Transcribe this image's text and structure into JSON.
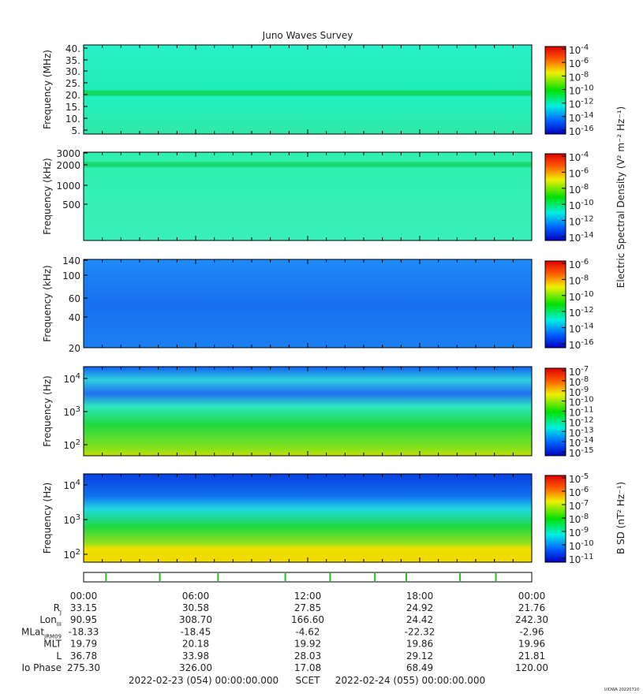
{
  "title": "Juno Waves Survey",
  "panels": [
    {
      "ylabel": "Frequency (MHz)",
      "yticks": [
        "40.",
        "35.",
        "30.",
        "25.",
        "20.",
        "15.",
        "10.",
        "5."
      ],
      "cbar_ticks": [
        {
          "base": "10",
          "exp": "-4"
        },
        {
          "base": "10",
          "exp": "-6"
        },
        {
          "base": "10",
          "exp": "-8"
        },
        {
          "base": "10",
          "exp": "-10"
        },
        {
          "base": "10",
          "exp": "-12"
        },
        {
          "base": "10",
          "exp": "-14"
        },
        {
          "base": "10",
          "exp": "-16"
        }
      ]
    },
    {
      "ylabel": "Frequency (kHz)",
      "yticks": [
        "3000",
        "2000",
        "1000",
        "500"
      ],
      "cbar_ticks": [
        {
          "base": "10",
          "exp": "-4"
        },
        {
          "base": "10",
          "exp": "-6"
        },
        {
          "base": "10",
          "exp": "-8"
        },
        {
          "base": "10",
          "exp": "-10"
        },
        {
          "base": "10",
          "exp": "-12"
        },
        {
          "base": "10",
          "exp": "-14"
        }
      ]
    },
    {
      "ylabel": "Frequency (kHz)",
      "yticks": [
        "140",
        "100",
        "60",
        "40",
        "20"
      ],
      "cbar_ticks": [
        {
          "base": "10",
          "exp": "-6"
        },
        {
          "base": "10",
          "exp": "-8"
        },
        {
          "base": "10",
          "exp": "-10"
        },
        {
          "base": "10",
          "exp": "-12"
        },
        {
          "base": "10",
          "exp": "-14"
        },
        {
          "base": "10",
          "exp": "-16"
        }
      ]
    },
    {
      "ylabel": "Frequency (Hz)",
      "yticks": [
        {
          "base": "10",
          "exp": "4"
        },
        {
          "base": "10",
          "exp": "3"
        },
        {
          "base": "10",
          "exp": "2"
        }
      ],
      "cbar_ticks": [
        {
          "base": "10",
          "exp": "-7"
        },
        {
          "base": "10",
          "exp": "-8"
        },
        {
          "base": "10",
          "exp": "-9"
        },
        {
          "base": "10",
          "exp": "-10"
        },
        {
          "base": "10",
          "exp": "-11"
        },
        {
          "base": "10",
          "exp": "-12"
        },
        {
          "base": "10",
          "exp": "-13"
        },
        {
          "base": "10",
          "exp": "-14"
        },
        {
          "base": "10",
          "exp": "-15"
        }
      ]
    },
    {
      "ylabel": "Frequency (Hz)",
      "yticks": [
        {
          "base": "10",
          "exp": "4"
        },
        {
          "base": "10",
          "exp": "3"
        },
        {
          "base": "10",
          "exp": "2"
        }
      ],
      "cbar_ticks": [
        {
          "base": "10",
          "exp": "-5"
        },
        {
          "base": "10",
          "exp": "-6"
        },
        {
          "base": "10",
          "exp": "-7"
        },
        {
          "base": "10",
          "exp": "-8"
        },
        {
          "base": "10",
          "exp": "-9"
        },
        {
          "base": "10",
          "exp": "-10"
        },
        {
          "base": "10",
          "exp": "-11"
        }
      ]
    }
  ],
  "electric_cbar_label": "Electric Spectral Density (V² m⁻² Hz⁻¹)",
  "magnetic_cbar_label": "B SD (nT² Hz⁻¹)",
  "times": [
    "00:00",
    "06:00",
    "12:00",
    "18:00",
    "00:00"
  ],
  "ephemeris": [
    {
      "label": "R",
      "sub": "J",
      "values": [
        "33.15",
        "30.58",
        "27.85",
        "24.92",
        "21.76"
      ]
    },
    {
      "label": "Lon",
      "sub": "III",
      "values": [
        "90.95",
        "308.70",
        "166.60",
        "24.42",
        "242.30"
      ]
    },
    {
      "label": "MLat",
      "sub": "JRM09",
      "values": [
        "-18.33",
        "-18.45",
        "-4.62",
        "-22.32",
        "-2.96"
      ]
    },
    {
      "label": "MLT",
      "values": [
        "19.79",
        "20.18",
        "19.92",
        "19.86",
        "19.96"
      ]
    },
    {
      "label": "L",
      "values": [
        "36.78",
        "33.98",
        "28.03",
        "29.12",
        "21.81"
      ]
    },
    {
      "label": "Io Phase",
      "values": [
        "275.30",
        "326.00",
        "17.08",
        "68.49",
        "120.00"
      ]
    }
  ],
  "start": "2022-02-23 (054) 00:00:00.000",
  "scet": "SCET",
  "end": "2022-02-24 (055) 00:00:00.000",
  "credit": "UIOWA 20220710"
}
